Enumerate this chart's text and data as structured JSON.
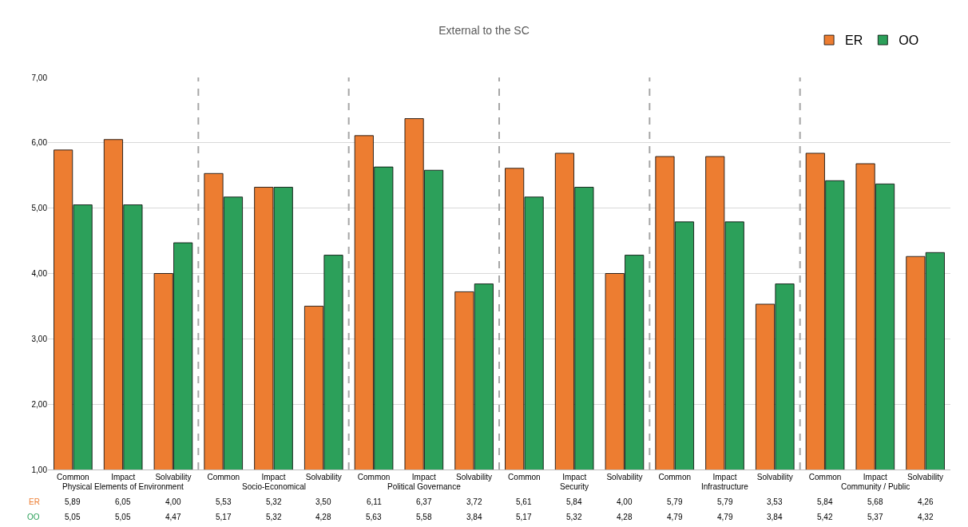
{
  "chart_data": {
    "type": "bar",
    "title": "External to the SC",
    "categories": [
      "Common",
      "Impact",
      "Solvability",
      "Common",
      "Impact",
      "Solvability",
      "Common",
      "Impact",
      "Solvability",
      "Common",
      "Impact",
      "Solvability",
      "Common",
      "Impact",
      "Solvability",
      "Common",
      "Impact",
      "Solvability"
    ],
    "annotations": [
      "Physical Elements of Environment",
      "Socio-Economical",
      "Political Governance",
      "Security",
      "Infrastructure",
      "Community / Public"
    ],
    "series": [
      {
        "name": "ER",
        "color": "#ed7d31",
        "values": [
          5.89,
          6.05,
          4.0,
          5.53,
          5.32,
          3.5,
          6.11,
          6.37,
          3.72,
          5.61,
          5.84,
          4.0,
          5.79,
          5.79,
          3.53,
          5.84,
          5.68,
          4.26
        ],
        "value_labels": [
          "5,89",
          "6,05",
          "4,00",
          "5,53",
          "5,32",
          "3,50",
          "6,11",
          "6,37",
          "3,72",
          "5,61",
          "5,84",
          "4,00",
          "5,79",
          "5,79",
          "3,53",
          "5,84",
          "5,68",
          "4,26"
        ]
      },
      {
        "name": "OO",
        "color": "#2ca05a",
        "values": [
          5.05,
          5.05,
          4.47,
          5.17,
          5.32,
          4.28,
          5.63,
          5.58,
          3.84,
          5.17,
          5.32,
          4.28,
          4.79,
          4.79,
          3.84,
          5.42,
          5.37,
          4.32
        ],
        "value_labels": [
          "5,05",
          "5,05",
          "4,47",
          "5,17",
          "5,32",
          "4,28",
          "5,63",
          "5,58",
          "3,84",
          "5,17",
          "5,32",
          "4,28",
          "4,79",
          "4,79",
          "3,84",
          "5,42",
          "5,37",
          "4,32"
        ]
      }
    ],
    "ylim": [
      1,
      7
    ],
    "yticks": [
      {
        "value": 1,
        "label": "1,00"
      },
      {
        "value": 2,
        "label": "2,00"
      },
      {
        "value": 3,
        "label": "3,00"
      },
      {
        "value": 4,
        "label": "4,00"
      },
      {
        "value": 5,
        "label": "5,00"
      },
      {
        "value": 6,
        "label": "6,00"
      },
      {
        "value": 7,
        "label": "7,00"
      }
    ],
    "grid": "y",
    "legend": "top right"
  }
}
